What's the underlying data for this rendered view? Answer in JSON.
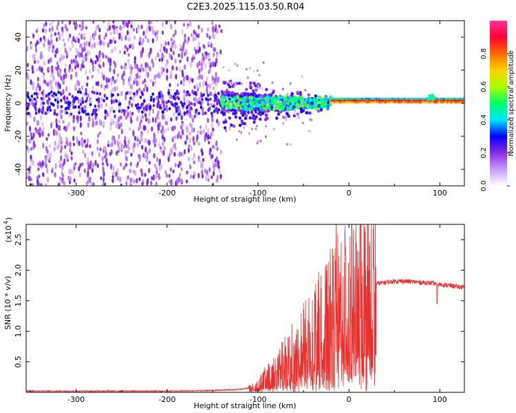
{
  "title": "C2E3.2025.115.03.50.R04",
  "chart_data": [
    {
      "type": "heatmap",
      "xlabel": "Height of straight line (km)",
      "ylabel": "Frequency (Hz)",
      "xlim": [
        -355,
        127
      ],
      "ylim": [
        -50,
        50
      ],
      "xticks": [
        -300,
        -200,
        -100,
        0,
        100
      ],
      "yticks": [
        -40,
        -20,
        0,
        20,
        40
      ],
      "xtick_labels": [
        "-300",
        "-200",
        "-100",
        "0",
        "100"
      ],
      "ytick_labels": [
        "-40",
        "-20",
        "0",
        "20",
        "40"
      ],
      "description_regions": [
        {
          "x_range": [
            -355,
            -140
          ],
          "freq_range": [
            -50,
            50
          ],
          "amplitude": 0.15
        },
        {
          "x_range": [
            -140,
            -20
          ],
          "freq_range": [
            -12,
            12
          ],
          "amplitude": 0.45
        },
        {
          "x_range": [
            -20,
            127
          ],
          "freq_range": [
            0,
            3
          ],
          "amplitude": 0.9
        }
      ],
      "colorbar": {
        "label": "Normalized spectral amplitude",
        "range": [
          0.0,
          1.0
        ],
        "ticks": [
          0.0,
          0.2,
          0.4,
          0.6,
          0.8
        ],
        "tick_labels": [
          "0.0",
          "0.2",
          "0.4",
          "0.6",
          "0.8"
        ],
        "colors": [
          "#ffffff",
          "#c79cff",
          "#8a2be2",
          "#0000ff",
          "#00e5ff",
          "#00ff66",
          "#aaff00",
          "#ffd000",
          "#ff6a00",
          "#ff0033",
          "#ff3399"
        ]
      }
    },
    {
      "type": "line",
      "xlabel": "Height of straight line (km)",
      "ylabel": "SNR (10 * v/v)",
      "y_multiplier_label": "(x10",
      "y_multiplier_exp": "4",
      "xlim": [
        -355,
        127
      ],
      "ylim": [
        0,
        2.75
      ],
      "xticks": [
        -300,
        -200,
        -100,
        0,
        100
      ],
      "yticks": [
        0.5,
        1.0,
        1.5,
        2.0,
        2.5
      ],
      "xtick_labels": [
        "-300",
        "-200",
        "-100",
        "0",
        "100"
      ],
      "ytick_labels": [
        "0.5",
        "1.0",
        "1.5",
        "2.0",
        "2.5"
      ],
      "color": "#e8312f",
      "x": [
        -355,
        -300,
        -250,
        -200,
        -150,
        -120,
        -105,
        -100,
        -90,
        -80,
        -70,
        -60,
        -50,
        -40,
        -30,
        -20,
        -15,
        -10,
        -5,
        0,
        10,
        20,
        30,
        40,
        50,
        60,
        70,
        80,
        90,
        95,
        97,
        100,
        110,
        120,
        127
      ],
      "y": [
        0.02,
        0.02,
        0.02,
        0.02,
        0.03,
        0.05,
        0.08,
        0.12,
        0.25,
        0.35,
        0.5,
        0.65,
        0.8,
        0.95,
        1.1,
        1.25,
        1.35,
        1.45,
        1.55,
        1.6,
        1.65,
        1.72,
        1.78,
        1.8,
        1.82,
        1.82,
        1.81,
        1.8,
        1.79,
        1.78,
        1.74,
        1.77,
        1.75,
        1.73,
        1.72
      ],
      "spike": {
        "x": -14,
        "y": 2.75
      }
    }
  ]
}
